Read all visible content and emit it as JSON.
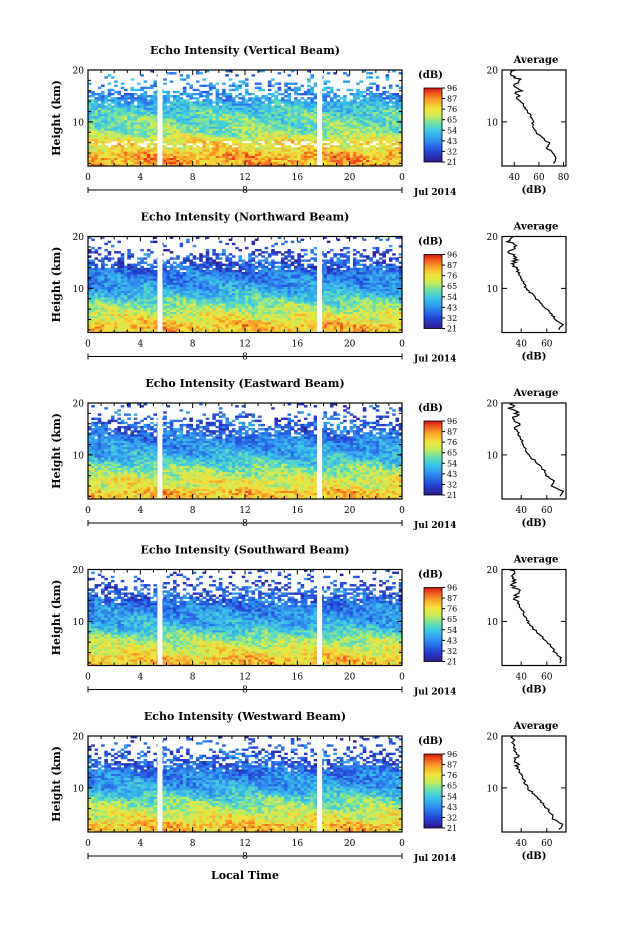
{
  "figure": {
    "xlabel": "Local Time",
    "date_label": "Jul 2014",
    "day_label": "8",
    "colorbar_label": "(dB)",
    "colorbar_ticks": [
      "96",
      "87",
      "76",
      "65",
      "54",
      "43",
      "32",
      "21"
    ],
    "avg_title": "Average",
    "avg_xlabel": "(dB)",
    "x_ticks": [
      "0",
      "4",
      "8",
      "12",
      "16",
      "20",
      "0"
    ],
    "height_ticks": [
      "20",
      "10"
    ],
    "ylabel": "Height (km)"
  },
  "chart_data": [
    {
      "type": "heatmap",
      "title": "Echo Intensity (Vertical Beam)",
      "ylabel": "Height (km)",
      "xlabel": "Local Time",
      "xlim": [
        0,
        24
      ],
      "ylim": [
        1.5,
        20
      ],
      "colorbar": {
        "label": "(dB)",
        "range": [
          21,
          96
        ],
        "ticks": [
          96,
          87,
          76,
          65,
          54,
          43,
          32,
          21
        ]
      },
      "data_gaps_hours": [
        5.5,
        17.7
      ],
      "mean_profile_height_km": [
        2,
        3,
        4,
        5,
        6,
        7,
        8,
        9,
        10,
        11,
        12,
        13,
        14,
        15,
        16,
        17,
        18,
        19,
        20
      ],
      "mean_profile_db": [
        72,
        74,
        72,
        66,
        68,
        62,
        58,
        56,
        55,
        54,
        51,
        48,
        45,
        42,
        44,
        40,
        46,
        38,
        40
      ],
      "avg_xticks": [
        "40",
        "60",
        "80"
      ],
      "avg_xlim": [
        30,
        82
      ]
    },
    {
      "type": "heatmap",
      "title": "Echo Intensity (Northward Beam)",
      "ylabel": "Height (km)",
      "xlabel": "Local Time",
      "xlim": [
        0,
        24
      ],
      "ylim": [
        1.5,
        20
      ],
      "colorbar": {
        "label": "(dB)",
        "range": [
          21,
          96
        ],
        "ticks": [
          96,
          87,
          76,
          65,
          54,
          43,
          32,
          21
        ]
      },
      "data_gaps_hours": [
        5.5,
        17.7
      ],
      "mean_profile_height_km": [
        2,
        3,
        4,
        5,
        6,
        7,
        8,
        9,
        10,
        11,
        12,
        13,
        14,
        15,
        16,
        17,
        18,
        19,
        20
      ],
      "mean_profile_db": [
        70,
        72,
        66,
        64,
        60,
        56,
        52,
        48,
        44,
        42,
        40,
        38,
        36,
        34,
        36,
        32,
        35,
        31,
        32
      ],
      "avg_xticks": [
        "40",
        "60"
      ],
      "avg_xlim": [
        25,
        75
      ]
    },
    {
      "type": "heatmap",
      "title": "Echo Intensity (Eastward Beam)",
      "ylabel": "Height (km)",
      "xlabel": "Local Time",
      "xlim": [
        0,
        24
      ],
      "ylim": [
        1.5,
        20
      ],
      "colorbar": {
        "label": "(dB)",
        "range": [
          21,
          96
        ],
        "ticks": [
          96,
          87,
          76,
          65,
          54,
          43,
          32,
          21
        ]
      },
      "data_gaps_hours": [
        5.5,
        17.7
      ],
      "mean_profile_height_km": [
        2,
        3,
        4,
        5,
        6,
        7,
        8,
        9,
        10,
        11,
        12,
        13,
        14,
        15,
        16,
        17,
        18,
        19,
        20
      ],
      "mean_profile_db": [
        70,
        72,
        64,
        66,
        60,
        58,
        54,
        50,
        46,
        44,
        42,
        40,
        38,
        36,
        38,
        33,
        37,
        32,
        34
      ],
      "avg_xticks": [
        "40",
        "60"
      ],
      "avg_xlim": [
        25,
        75
      ]
    },
    {
      "type": "heatmap",
      "title": "Echo Intensity (Southward Beam)",
      "ylabel": "Height (km)",
      "xlabel": "Local Time",
      "xlim": [
        0,
        24
      ],
      "ylim": [
        1.5,
        20
      ],
      "colorbar": {
        "label": "(dB)",
        "range": [
          21,
          96
        ],
        "ticks": [
          96,
          87,
          76,
          65,
          54,
          43,
          32,
          21
        ]
      },
      "data_gaps_hours": [
        5.5,
        17.7
      ],
      "mean_profile_height_km": [
        2,
        3,
        4,
        5,
        6,
        7,
        8,
        9,
        10,
        11,
        12,
        13,
        14,
        15,
        16,
        17,
        18,
        19,
        20
      ],
      "mean_profile_db": [
        70,
        71,
        66,
        64,
        60,
        57,
        52,
        48,
        45,
        43,
        41,
        39,
        37,
        35,
        37,
        33,
        36,
        32,
        33
      ],
      "avg_xticks": [
        "40",
        "60"
      ],
      "avg_xlim": [
        25,
        75
      ]
    },
    {
      "type": "heatmap",
      "title": "Echo Intensity (Westward Beam)",
      "ylabel": "Height (km)",
      "xlabel": "Local Time",
      "xlim": [
        0,
        24
      ],
      "ylim": [
        1.5,
        20
      ],
      "colorbar": {
        "label": "(dB)",
        "range": [
          21,
          96
        ],
        "ticks": [
          96,
          87,
          76,
          65,
          54,
          43,
          32,
          21
        ]
      },
      "data_gaps_hours": [
        5.5,
        17.7
      ],
      "mean_profile_height_km": [
        2,
        3,
        4,
        5,
        6,
        7,
        8,
        9,
        10,
        11,
        12,
        13,
        14,
        15,
        16,
        17,
        18,
        19,
        20
      ],
      "mean_profile_db": [
        70,
        72,
        65,
        64,
        60,
        57,
        53,
        49,
        45,
        43,
        41,
        39,
        37,
        35,
        37,
        33,
        36,
        32,
        33
      ],
      "avg_xticks": [
        "40",
        "60"
      ],
      "avg_xlim": [
        25,
        75
      ]
    }
  ]
}
